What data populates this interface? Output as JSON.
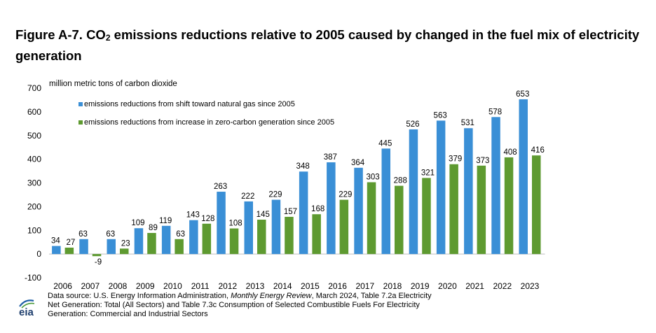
{
  "title": {
    "prefix": "Figure A-7. CO",
    "subscript": "2",
    "suffix": " emissions reductions relative to 2005 caused by changed in the fuel mix of electricity generation"
  },
  "chart_data": {
    "type": "bar",
    "ylabel": "million metric tons of carbon dioxide",
    "ylim": [
      -100,
      700
    ],
    "yticks": [
      -100,
      0,
      100,
      200,
      300,
      400,
      500,
      600,
      700
    ],
    "grid": false,
    "legend_placement": "top-left",
    "categories": [
      "2006",
      "2007",
      "2008",
      "2009",
      "2010",
      "2011",
      "2012",
      "2013",
      "2014",
      "2015",
      "2016",
      "2017",
      "2018",
      "2019",
      "2020",
      "2021",
      "2022",
      "2023"
    ],
    "series": [
      {
        "name": "emissions reductions from shift toward natural gas since 2005",
        "color": "#3a8fd6",
        "values": [
          34,
          63,
          63,
          109,
          119,
          143,
          263,
          222,
          229,
          348,
          387,
          364,
          445,
          526,
          563,
          531,
          578,
          653
        ]
      },
      {
        "name": "emissions reductions from increase in zero-carbon generation since 2005",
        "color": "#5e9a30",
        "values": [
          27,
          -9,
          23,
          89,
          63,
          128,
          108,
          145,
          157,
          168,
          229,
          303,
          288,
          321,
          379,
          373,
          408,
          416
        ]
      }
    ]
  },
  "source": {
    "line1_a": "Data source: U.S. Energy Information Administration, ",
    "line1_b": "Monthly Energy Review",
    "line1_c": ", March 2024, Table 7.2a Electricity",
    "line2": "Net Generation: Total (All Sectors) and Table 7.3c Consumption of Selected Combustible Fuels For Electricity",
    "line3": "Generation: Commercial and Industrial Sectors"
  },
  "logo": {
    "text": "eia"
  }
}
